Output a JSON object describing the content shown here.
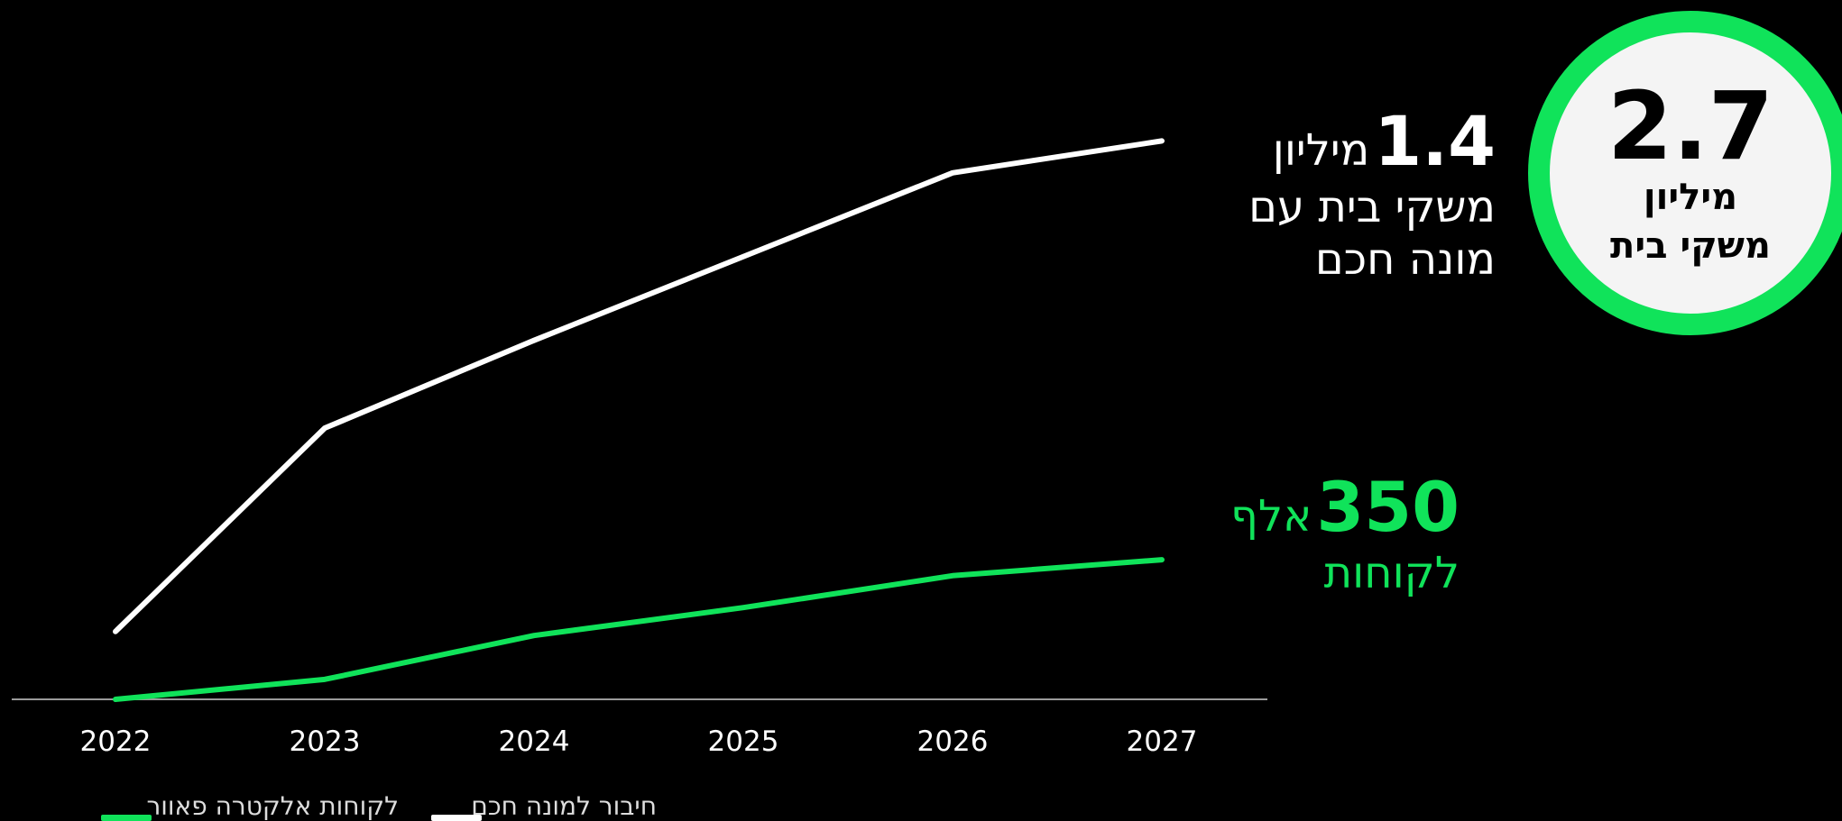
{
  "badge": {
    "value": "2.7",
    "line1": "מיליון",
    "line2": "משקי בית"
  },
  "callouts": {
    "white": {
      "value": "1.4",
      "unit": "מיליון",
      "line2": "משקי בית עם",
      "line3": "מונה חכם"
    },
    "green": {
      "value": "350",
      "unit": "אלף",
      "line2": "לקוחות"
    }
  },
  "colors": {
    "white_series": "#ffffff",
    "green_series": "#10e35a",
    "axis": "#9a9a9a",
    "background": "#000000"
  },
  "chart_data": {
    "type": "line",
    "x": [
      "2022",
      "2023",
      "2024",
      "2025",
      "2026",
      "2027"
    ],
    "ylim": [
      0,
      1.55
    ],
    "grid": false,
    "legend_position": "bottom-left",
    "series": [
      {
        "name": "חיבור למונה חכם",
        "color": "#ffffff",
        "values": [
          0.17,
          0.68,
          0.9,
          1.11,
          1.32,
          1.4
        ]
      },
      {
        "name": "לקוחות אלקטרה פאוור",
        "color": "#10e35a",
        "values": [
          0.0,
          0.05,
          0.16,
          0.23,
          0.31,
          0.35
        ]
      }
    ]
  }
}
